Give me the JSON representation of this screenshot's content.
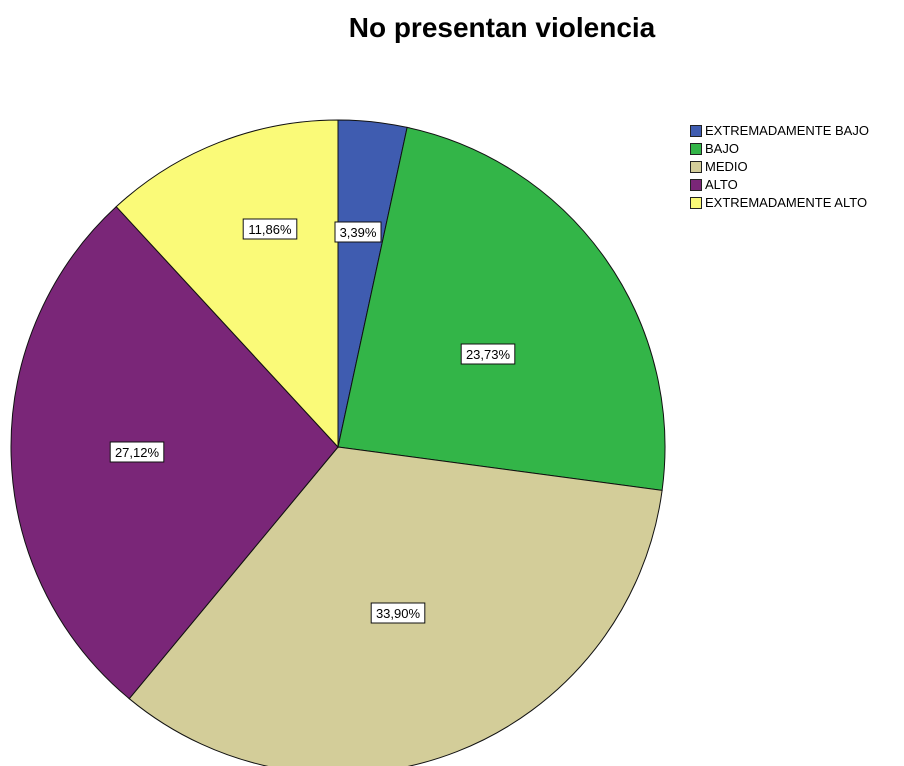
{
  "chart_data": {
    "type": "pie",
    "title": "No presentan violencia",
    "categories": [
      "EXTREMADAMENTE BAJO",
      "BAJO",
      "MEDIO",
      "ALTO",
      "EXTREMADAMENTE ALTO"
    ],
    "values": [
      3.39,
      23.73,
      33.9,
      27.12,
      11.86
    ],
    "labels": [
      "3,39%",
      "23,73%",
      "33,90%",
      "27,12%",
      "11,86%"
    ],
    "colors": [
      "#3f5cb0",
      "#33b548",
      "#d3cd99",
      "#7a2678",
      "#fafa78"
    ],
    "legend_position": "right",
    "start_angle": "12 o'clock, clockwise"
  }
}
